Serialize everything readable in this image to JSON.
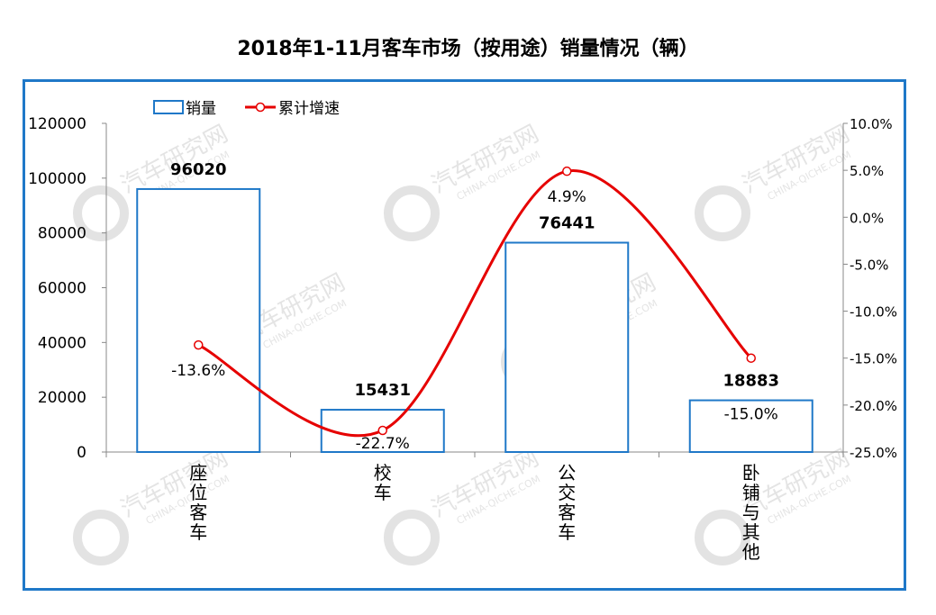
{
  "title": "2018年1-11月客车市场（按用途）销量情况（辆）",
  "colors": {
    "bar_stroke": "#1f78c8",
    "line": "#e60000",
    "frame": "#1f78c8"
  },
  "watermark": {
    "text": "汽车研究网",
    "sub": "CHINA-QICHE.COM"
  },
  "chart_data": {
    "type": "bar",
    "categories": [
      "座位客车",
      "校车",
      "公交客车",
      "卧铺与其他"
    ],
    "series": [
      {
        "name": "销量",
        "type": "bar",
        "axis": "left",
        "values": [
          96020,
          15431,
          76441,
          18883
        ],
        "labels": [
          "96020",
          "15431",
          "76441",
          "18883"
        ]
      },
      {
        "name": "累计增速",
        "type": "line",
        "axis": "right",
        "values": [
          -13.6,
          -22.7,
          4.9,
          -15.0
        ],
        "labels": [
          "-13.6%",
          "-22.7%",
          "4.9%",
          "-15.0%"
        ]
      }
    ],
    "ylim": [
      0,
      120000
    ],
    "yticks": [
      "0",
      "20000",
      "40000",
      "60000",
      "80000",
      "100000",
      "120000"
    ],
    "y2lim": [
      -25,
      10
    ],
    "y2ticks": [
      "-25.0%",
      "-20.0%",
      "-15.0%",
      "-10.0%",
      "-5.0%",
      "0.0%",
      "5.0%",
      "10.0%"
    ],
    "legend_position": "top-left",
    "grid": false
  }
}
